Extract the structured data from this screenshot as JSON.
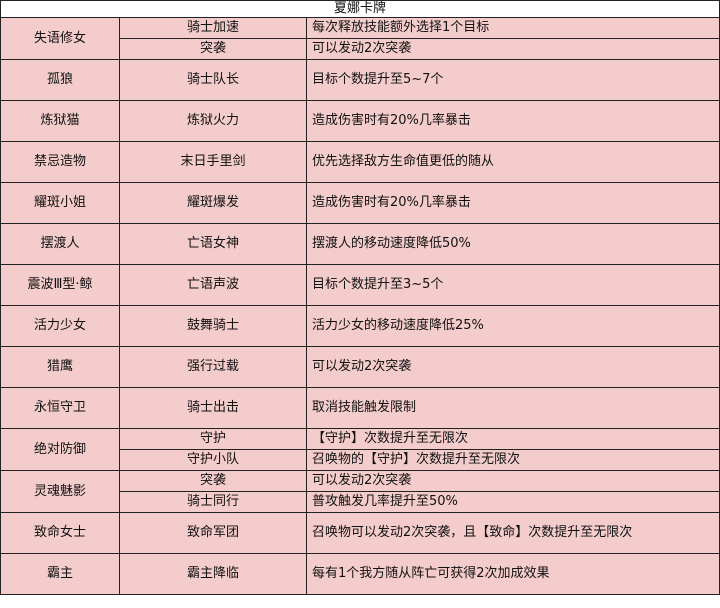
{
  "title": "夏娜卡牌",
  "colors": {
    "cell_bg": "#f4cccc",
    "border": "#222222"
  },
  "rows": [
    {
      "name": "失语修女",
      "skills": [
        {
          "skill": "骑士加速",
          "effect": "每次释放技能额外选择1个目标"
        },
        {
          "skill": "突袭",
          "effect": "可以发动2次突袭"
        }
      ]
    },
    {
      "name": "孤狼",
      "skills": [
        {
          "skill": "骑士队长",
          "effect": "目标个数提升至5~7个"
        }
      ]
    },
    {
      "name": "炼狱猫",
      "skills": [
        {
          "skill": "炼狱火力",
          "effect": "造成伤害时有20%几率暴击"
        }
      ]
    },
    {
      "name": "禁忌造物",
      "skills": [
        {
          "skill": "末日手里剑",
          "effect": "优先选择敌方生命值更低的随从"
        }
      ]
    },
    {
      "name": "耀斑小姐",
      "skills": [
        {
          "skill": "耀斑爆发",
          "effect": "造成伤害时有20%几率暴击"
        }
      ]
    },
    {
      "name": "摆渡人",
      "skills": [
        {
          "skill": "亡语女神",
          "effect": "摆渡人的移动速度降低50%"
        }
      ]
    },
    {
      "name": "震波Ⅲ型·鲸",
      "skills": [
        {
          "skill": "亡语声波",
          "effect": "目标个数提升至3~5个"
        }
      ]
    },
    {
      "name": "活力少女",
      "skills": [
        {
          "skill": "鼓舞骑士",
          "effect": "活力少女的移动速度降低25%"
        }
      ]
    },
    {
      "name": "猎鹰",
      "skills": [
        {
          "skill": "强行过载",
          "effect": "可以发动2次突袭"
        }
      ]
    },
    {
      "name": "永恒守卫",
      "skills": [
        {
          "skill": "骑士出击",
          "effect": "取消技能触发限制"
        }
      ]
    },
    {
      "name": "绝对防御",
      "skills": [
        {
          "skill": "守护",
          "effect": "【守护】次数提升至无限次"
        },
        {
          "skill": "守护小队",
          "effect": "召唤物的【守护】次数提升至无限次"
        }
      ]
    },
    {
      "name": "灵魂魅影",
      "skills": [
        {
          "skill": "突袭",
          "effect": "可以发动2次突袭"
        },
        {
          "skill": "骑士同行",
          "effect": "普攻触发几率提升至50%"
        }
      ]
    },
    {
      "name": "致命女士",
      "skills": [
        {
          "skill": "致命军团",
          "effect": "召唤物可以发动2次突袭，且【致命】次数提升至无限次"
        }
      ]
    },
    {
      "name": "霸主",
      "skills": [
        {
          "skill": "霸主降临",
          "effect": "每有1个我方随从阵亡可获得2次加成效果"
        }
      ]
    }
  ]
}
